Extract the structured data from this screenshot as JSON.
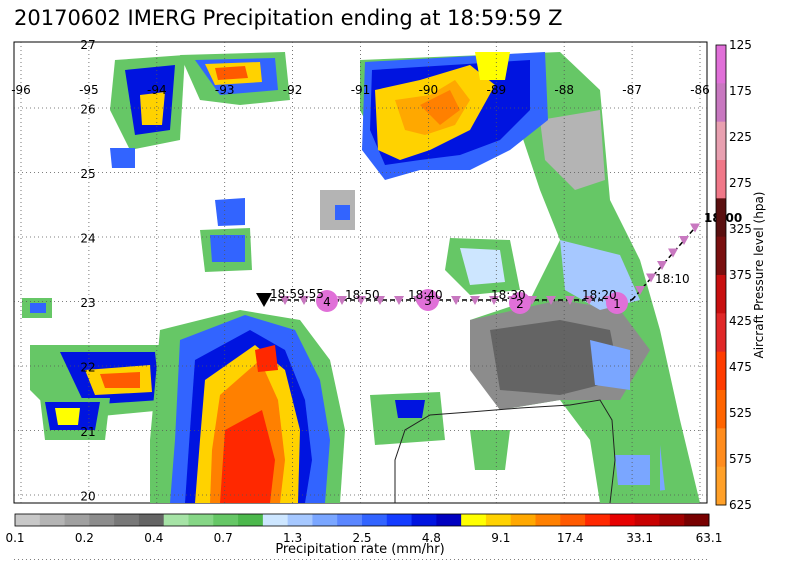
{
  "title": "20170602 IMERG Precipitation ending at 18:59:59 Z",
  "map": {
    "lon_ticks": [
      "-96",
      "-95",
      "-94",
      "-93",
      "-92",
      "-91",
      "-90",
      "-89",
      "-88",
      "-87",
      "-86"
    ],
    "lat_ticks": [
      "27",
      "26",
      "25",
      "24",
      "23",
      "22",
      "21",
      "20"
    ],
    "lon_range": [
      -96,
      -86
    ],
    "lat_range": [
      20,
      27
    ]
  },
  "flight_track": {
    "start_label": "18:00",
    "time_labels": [
      "18:10",
      "18:20",
      "18:30",
      "18:40",
      "18:50",
      "18:59:55"
    ],
    "waypoints": [
      "1",
      "2",
      "3",
      "4"
    ]
  },
  "precip_colorbar": {
    "label": "Precipitation rate (mm/hr)",
    "ticks": [
      "0.1",
      "0.2",
      "0.4",
      "0.7",
      "1.3",
      "2.5",
      "4.8",
      "9.1",
      "17.4",
      "33.1",
      "63.1"
    ],
    "colors": [
      "#c8c8c8",
      "#b4b4b4",
      "#a0a0a0",
      "#8c8c8c",
      "#787878",
      "#646464",
      "#a6e3a6",
      "#86d686",
      "#66c766",
      "#4cb84c",
      "#cde6ff",
      "#a6c8ff",
      "#7aa6ff",
      "#5a86ff",
      "#3264ff",
      "#143cff",
      "#0014e0",
      "#0000c0",
      "#ffff00",
      "#ffd200",
      "#ffa800",
      "#ff8000",
      "#ff5a00",
      "#ff2800",
      "#e60000",
      "#c80000",
      "#a00000",
      "#780000"
    ]
  },
  "pressure_colorbar": {
    "label": "Aircraft Pressure level (hpa)",
    "ticks": [
      "125",
      "175",
      "225",
      "275",
      "325",
      "375",
      "425",
      "475",
      "525",
      "575",
      "625"
    ],
    "colors": [
      "#e070d8",
      "#c878c0",
      "#e8a0b0",
      "#f07888",
      "#5a1010",
      "#7a1010",
      "#c81010",
      "#e02828",
      "#ff3c00",
      "#ff6400",
      "#ff8c1e",
      "#ffa028"
    ]
  }
}
